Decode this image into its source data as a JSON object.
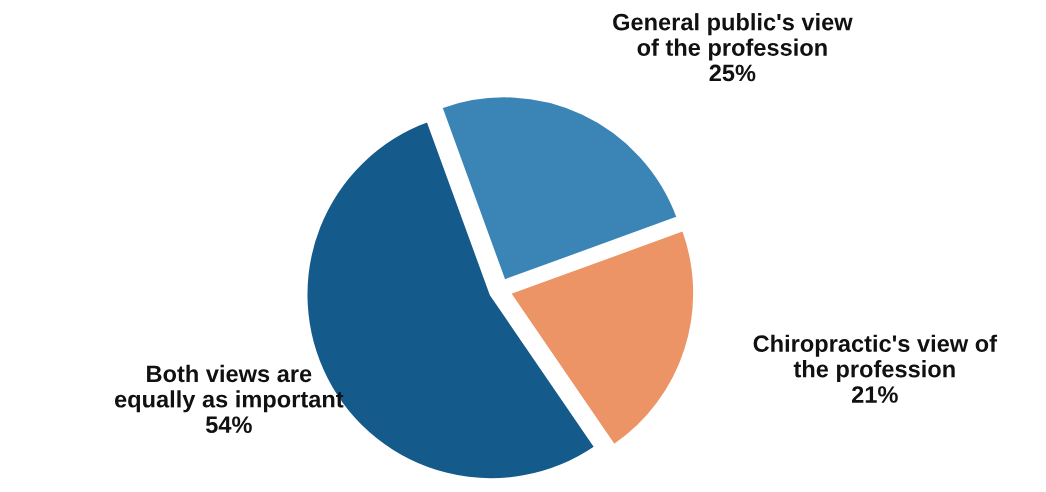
{
  "chart_data": {
    "type": "pie",
    "categories": [
      "General public's view\nof the profession",
      "Chiropractic's view of\nthe profession",
      "Both views are\nequally as important"
    ],
    "values": [
      25,
      21,
      54
    ],
    "value_labels": [
      "25%",
      "21%",
      "54%"
    ],
    "colors": [
      "#3b84b6",
      "#ec9466",
      "#145a8a"
    ]
  }
}
